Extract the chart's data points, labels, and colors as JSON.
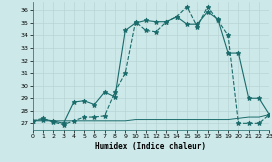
{
  "xlabel": "Humidex (Indice chaleur)",
  "xlim": [
    0,
    23
  ],
  "ylim": [
    26.5,
    36.7
  ],
  "yticks": [
    27,
    28,
    29,
    30,
    31,
    32,
    33,
    34,
    35,
    36
  ],
  "xticks": [
    0,
    1,
    2,
    3,
    4,
    5,
    6,
    7,
    8,
    9,
    10,
    11,
    12,
    13,
    14,
    15,
    16,
    17,
    18,
    19,
    20,
    21,
    22,
    23
  ],
  "bg_color": "#cce8e8",
  "line_color": "#1a6b6b",
  "grid_color": "#b8d4d4",
  "line1_x": [
    0,
    1,
    2,
    3,
    4,
    5,
    6,
    7,
    8,
    9,
    10,
    11,
    12,
    13,
    14,
    15,
    16,
    17,
    18,
    19,
    20,
    21,
    22,
    23
  ],
  "line1_y": [
    27.2,
    27.4,
    27.1,
    26.9,
    27.2,
    27.5,
    27.5,
    27.6,
    29.5,
    31.0,
    35.1,
    34.4,
    34.3,
    35.1,
    35.5,
    36.3,
    34.7,
    36.3,
    35.2,
    34.0,
    27.0,
    27.0,
    27.0,
    27.7
  ],
  "line2_x": [
    0,
    1,
    2,
    3,
    4,
    5,
    6,
    7,
    8,
    9,
    10,
    11,
    12,
    13,
    14,
    15,
    16,
    17,
    18,
    19,
    20,
    21,
    22,
    23
  ],
  "line2_y": [
    27.2,
    27.2,
    27.2,
    27.2,
    27.2,
    27.2,
    27.2,
    27.2,
    27.2,
    27.2,
    27.3,
    27.3,
    27.3,
    27.3,
    27.3,
    27.3,
    27.3,
    27.3,
    27.3,
    27.3,
    27.4,
    27.5,
    27.5,
    27.7
  ],
  "line3_x": [
    0,
    1,
    2,
    3,
    4,
    5,
    6,
    7,
    8,
    9,
    10,
    11,
    12,
    13,
    14,
    15,
    16,
    17,
    18,
    19,
    20,
    21,
    22,
    23
  ],
  "line3_y": [
    27.2,
    27.3,
    27.2,
    27.0,
    28.7,
    28.8,
    28.5,
    29.5,
    29.1,
    34.4,
    35.0,
    35.2,
    35.1,
    35.1,
    35.5,
    34.9,
    34.9,
    35.9,
    35.3,
    32.6,
    32.6,
    29.0,
    29.0,
    27.7
  ]
}
